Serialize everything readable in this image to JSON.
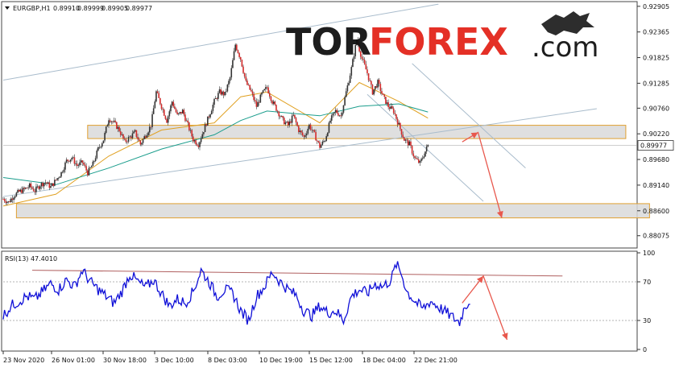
{
  "chart_data": [
    {
      "type": "candlestick",
      "header": {
        "symbol": "EURGBP,H1",
        "open": "0.89910",
        "high": "0.89999",
        "low": "0.89905",
        "close": "0.89977"
      },
      "price_axis": {
        "ylim": [
          0.8785,
          0.9297
        ],
        "ticks": [
          {
            "value": 0.92905,
            "label": "0.92905"
          },
          {
            "value": 0.92365,
            "label": "0.92365"
          },
          {
            "value": 0.91825,
            "label": "0.91825"
          },
          {
            "value": 0.91285,
            "label": "0.91285"
          },
          {
            "value": 0.9076,
            "label": "0.90760"
          },
          {
            "value": 0.9022,
            "label": "0.90220"
          },
          {
            "value": 0.8968,
            "label": "0.89680"
          },
          {
            "value": 0.8914,
            "label": "0.89140"
          },
          {
            "value": 0.886,
            "label": "0.88600"
          },
          {
            "value": 0.88075,
            "label": "0.88075"
          }
        ],
        "current_price": {
          "value": 0.89977,
          "label": "0.89977"
        }
      },
      "x_axis": {
        "labels": [
          "23 Nov 2020",
          "26 Nov 01:00",
          "30 Nov 18:00",
          "3 Dec 10:00",
          "8 Dec 03:00",
          "10 Dec 19:00",
          "15 Dec 12:00",
          "18 Dec 04:00",
          "22 Dec 21:00"
        ]
      },
      "price_path": [
        [
          0,
          0.8885
        ],
        [
          2,
          0.8878
        ],
        [
          4,
          0.8892
        ],
        [
          6,
          0.89
        ],
        [
          8,
          0.8905
        ],
        [
          10,
          0.8912
        ],
        [
          12,
          0.8902
        ],
        [
          14,
          0.8915
        ],
        [
          16,
          0.892
        ],
        [
          18,
          0.891
        ],
        [
          20,
          0.8925
        ],
        [
          22,
          0.894
        ],
        [
          24,
          0.8965
        ],
        [
          26,
          0.8972
        ],
        [
          28,
          0.8955
        ],
        [
          30,
          0.8962
        ],
        [
          32,
          0.894
        ],
        [
          34,
          0.8958
        ],
        [
          36,
          0.899
        ],
        [
          38,
          0.901
        ],
        [
          40,
          0.9055
        ],
        [
          42,
          0.9045
        ],
        [
          44,
          0.903
        ],
        [
          46,
          0.9005
        ],
        [
          48,
          0.9015
        ],
        [
          50,
          0.9025
        ],
        [
          52,
          0.9
        ],
        [
          54,
          0.902
        ],
        [
          56,
          0.904
        ],
        [
          58,
          0.911
        ],
        [
          60,
          0.908
        ],
        [
          62,
          0.905
        ],
        [
          64,
          0.909
        ],
        [
          66,
          0.906
        ],
        [
          68,
          0.907
        ],
        [
          70,
          0.904
        ],
        [
          72,
          0.901
        ],
        [
          74,
          0.9
        ],
        [
          76,
          0.903
        ],
        [
          78,
          0.906
        ],
        [
          80,
          0.909
        ],
        [
          82,
          0.911
        ],
        [
          84,
          0.9105
        ],
        [
          86,
          0.914
        ],
        [
          88,
          0.921
        ],
        [
          90,
          0.918
        ],
        [
          92,
          0.913
        ],
        [
          94,
          0.911
        ],
        [
          96,
          0.908
        ],
        [
          98,
          0.9105
        ],
        [
          100,
          0.912
        ],
        [
          102,
          0.909
        ],
        [
          104,
          0.907
        ],
        [
          106,
          0.905
        ],
        [
          108,
          0.904
        ],
        [
          110,
          0.906
        ],
        [
          112,
          0.903
        ],
        [
          114,
          0.9015
        ],
        [
          116,
          0.904
        ],
        [
          118,
          0.902
        ],
        [
          120,
          0.8995
        ],
        [
          122,
          0.901
        ],
        [
          124,
          0.905
        ],
        [
          126,
          0.907
        ],
        [
          128,
          0.906
        ],
        [
          130,
          0.911
        ],
        [
          132,
          0.916
        ],
        [
          134,
          0.922
        ],
        [
          136,
          0.918
        ],
        [
          138,
          0.915
        ],
        [
          140,
          0.911
        ],
        [
          142,
          0.913
        ],
        [
          144,
          0.91
        ],
        [
          146,
          0.908
        ],
        [
          148,
          0.907
        ],
        [
          150,
          0.904
        ],
        [
          152,
          0.901
        ],
        [
          154,
          0.9
        ],
        [
          156,
          0.897
        ],
        [
          158,
          0.896
        ],
        [
          160,
          0.8985
        ],
        [
          161,
          0.8998
        ]
      ],
      "moving_averages": [
        {
          "color": "#e0a020",
          "values": [
            [
              0,
              0.887
            ],
            [
              20,
              0.8895
            ],
            [
              40,
              0.8975
            ],
            [
              60,
              0.903
            ],
            [
              80,
              0.9045
            ],
            [
              90,
              0.91
            ],
            [
              100,
              0.911
            ],
            [
              120,
              0.9045
            ],
            [
              135,
              0.913
            ],
            [
              150,
              0.909
            ],
            [
              161,
              0.9055
            ]
          ]
        },
        {
          "color": "#1a9d8c",
          "values": [
            [
              0,
              0.893
            ],
            [
              20,
              0.8915
            ],
            [
              40,
              0.895
            ],
            [
              60,
              0.899
            ],
            [
              80,
              0.902
            ],
            [
              90,
              0.905
            ],
            [
              100,
              0.907
            ],
            [
              120,
              0.906
            ],
            [
              135,
              0.908
            ],
            [
              150,
              0.9085
            ],
            [
              161,
              0.9068
            ]
          ]
        }
      ],
      "support_zones": [
        {
          "from": 0.9012,
          "to": 0.904,
          "x0": 32,
          "x1": 236
        },
        {
          "from": 0.8845,
          "to": 0.8875,
          "x0": 5,
          "x1": 245
        }
      ],
      "trend_channel": {
        "upper": [
          [
            0,
            0.9135
          ],
          [
            165,
            0.9295
          ]
        ],
        "lower": [
          [
            0,
            0.889
          ],
          [
            225,
            0.9075
          ]
        ]
      },
      "down_channel": {
        "upper": [
          [
            155,
            0.917
          ],
          [
            198,
            0.895
          ]
        ],
        "lower": [
          [
            138,
            0.9105
          ],
          [
            182,
            0.888
          ]
        ]
      },
      "forecast_arrow": {
        "points": [
          [
            174,
            0.9005
          ],
          [
            180,
            0.9025
          ],
          [
            189,
            0.8845
          ]
        ],
        "color": "#e8584d"
      }
    },
    {
      "type": "line",
      "title": "RSI(13) 47.4010",
      "ylim": [
        0,
        100
      ],
      "ticks": [
        {
          "value": 100,
          "label": "100"
        },
        {
          "value": 70,
          "label": "70"
        },
        {
          "value": 30,
          "label": "30"
        },
        {
          "value": 0,
          "label": "0"
        }
      ],
      "levels": [
        70,
        30
      ],
      "resistance_line": [
        [
          0,
          82
        ],
        [
          212,
          76
        ]
      ],
      "values": [
        [
          0,
          35
        ],
        [
          3,
          45
        ],
        [
          6,
          50
        ],
        [
          9,
          55
        ],
        [
          12,
          52
        ],
        [
          15,
          60
        ],
        [
          18,
          68
        ],
        [
          21,
          62
        ],
        [
          24,
          72
        ],
        [
          27,
          65
        ],
        [
          30,
          82
        ],
        [
          33,
          70
        ],
        [
          36,
          62
        ],
        [
          39,
          55
        ],
        [
          42,
          48
        ],
        [
          45,
          60
        ],
        [
          48,
          78
        ],
        [
          51,
          70
        ],
        [
          54,
          64
        ],
        [
          57,
          72
        ],
        [
          60,
          58
        ],
        [
          63,
          45
        ],
        [
          66,
          52
        ],
        [
          69,
          48
        ],
        [
          72,
          60
        ],
        [
          75,
          82
        ],
        [
          78,
          70
        ],
        [
          81,
          55
        ],
        [
          84,
          62
        ],
        [
          87,
          58
        ],
        [
          90,
          40
        ],
        [
          93,
          30
        ],
        [
          96,
          55
        ],
        [
          99,
          65
        ],
        [
          102,
          80
        ],
        [
          105,
          70
        ],
        [
          108,
          62
        ],
        [
          111,
          56
        ],
        [
          114,
          40
        ],
        [
          117,
          35
        ],
        [
          120,
          45
        ],
        [
          123,
          38
        ],
        [
          126,
          40
        ],
        [
          129,
          30
        ],
        [
          132,
          55
        ],
        [
          135,
          62
        ],
        [
          138,
          58
        ],
        [
          141,
          68
        ],
        [
          144,
          65
        ],
        [
          147,
          72
        ],
        [
          149,
          88
        ],
        [
          151,
          78
        ],
        [
          153,
          60
        ],
        [
          156,
          50
        ],
        [
          159,
          42
        ],
        [
          162,
          50
        ],
        [
          165,
          44
        ],
        [
          168,
          38
        ],
        [
          171,
          32
        ],
        [
          173,
          28
        ],
        [
          175,
          45
        ],
        [
          177,
          50
        ]
      ],
      "forecast_arrow": {
        "points": [
          [
            174,
            48
          ],
          [
            182,
            76
          ],
          [
            191,
            10
          ]
        ],
        "color": "#e8584d"
      }
    }
  ],
  "watermark": {
    "part1": "TOR",
    "part2": "FOREX",
    "part3": ".com"
  }
}
